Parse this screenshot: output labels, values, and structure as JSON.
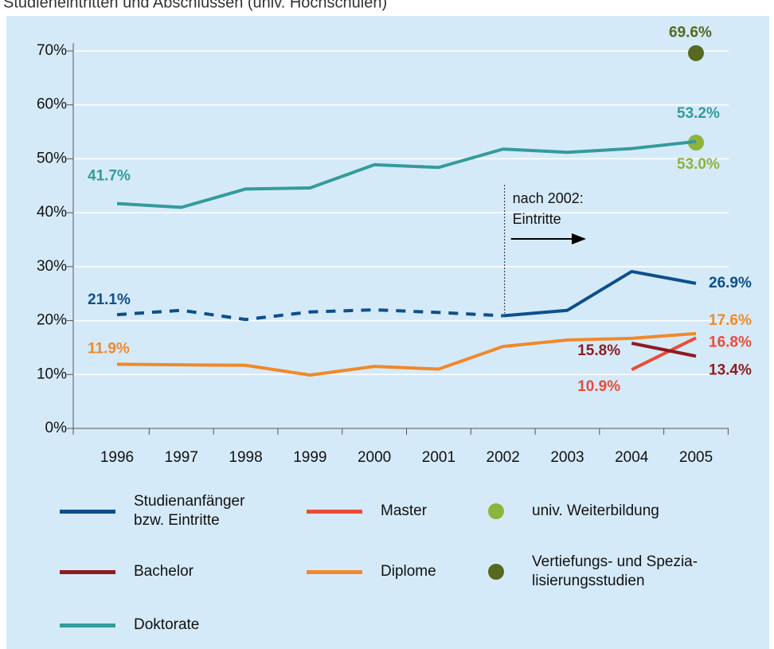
{
  "chart_data": {
    "type": "line",
    "title": "Studieneintritten und Abschlüssen (univ. Hochschulen)",
    "categories": [
      "1996",
      "1997",
      "1998",
      "1999",
      "2000",
      "2001",
      "2002",
      "2003",
      "2004",
      "2005"
    ],
    "ylim": [
      0,
      70
    ],
    "yticks": [
      {
        "value": 0,
        "label": "0%"
      },
      {
        "value": 10,
        "label": "10%"
      },
      {
        "value": 20,
        "label": "20%"
      },
      {
        "value": 30,
        "label": "30%"
      },
      {
        "value": 40,
        "label": "40%"
      },
      {
        "value": 50,
        "label": "50%"
      },
      {
        "value": 60,
        "label": "60%"
      },
      {
        "value": 70,
        "label": "70%"
      }
    ],
    "grid": true,
    "annotation": {
      "text": "nach 2002:\nEintritte",
      "at": "2002"
    },
    "series": [
      {
        "name": "Studienanfänger\nbzw. Eintritte",
        "color": "#0d4f8b",
        "dashed_until": "2002",
        "values": [
          21.1,
          21.9,
          20.2,
          21.6,
          22.0,
          21.5,
          20.9,
          21.9,
          29.1,
          26.9
        ],
        "value_labels": [
          "21.1%",
          null,
          null,
          null,
          null,
          null,
          null,
          null,
          null,
          "26.9%"
        ]
      },
      {
        "name": "Master",
        "color": "#ea4c38",
        "values": [
          null,
          null,
          null,
          null,
          null,
          null,
          null,
          null,
          10.9,
          16.8
        ],
        "value_labels": [
          null,
          null,
          null,
          null,
          null,
          null,
          null,
          null,
          "10.9%",
          "16.8%"
        ]
      },
      {
        "name": "univ. Weiterbildung",
        "color": "#8db43c",
        "marker": true,
        "values": [
          null,
          null,
          null,
          null,
          null,
          null,
          null,
          null,
          null,
          53.0
        ],
        "value_labels": [
          null,
          null,
          null,
          null,
          null,
          null,
          null,
          null,
          null,
          "53.0%"
        ]
      },
      {
        "name": "Bachelor",
        "color": "#8e1b1f",
        "values": [
          null,
          null,
          null,
          null,
          null,
          null,
          null,
          null,
          15.8,
          13.4
        ],
        "value_labels": [
          null,
          null,
          null,
          null,
          null,
          null,
          null,
          null,
          "15.8%",
          "13.4%"
        ]
      },
      {
        "name": "Diplome",
        "color": "#f0892a",
        "values": [
          11.9,
          11.8,
          11.7,
          9.9,
          11.5,
          11.0,
          15.2,
          16.4,
          16.7,
          17.6
        ],
        "value_labels": [
          "11.9%",
          null,
          null,
          null,
          null,
          null,
          null,
          null,
          null,
          "17.6%"
        ]
      },
      {
        "name": "Vertiefungs- und Spezia-\nlisierungsstudien",
        "color": "#55691f",
        "marker": true,
        "values": [
          null,
          null,
          null,
          null,
          null,
          null,
          null,
          null,
          null,
          69.6
        ],
        "value_labels": [
          null,
          null,
          null,
          null,
          null,
          null,
          null,
          null,
          null,
          "69.6%"
        ]
      },
      {
        "name": "Doktorate",
        "color": "#349b9b",
        "values": [
          41.7,
          41.0,
          44.4,
          44.6,
          48.9,
          48.4,
          51.8,
          51.2,
          51.9,
          53.2
        ],
        "value_labels": [
          "41.7%",
          null,
          null,
          null,
          null,
          null,
          null,
          null,
          null,
          "53.2%"
        ]
      }
    ]
  }
}
